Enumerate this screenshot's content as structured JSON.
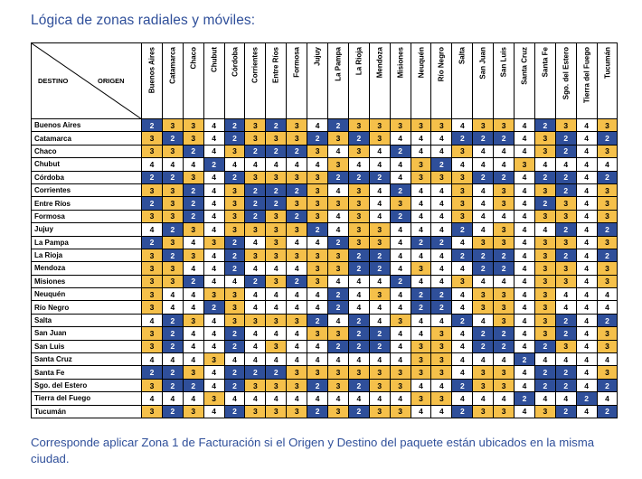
{
  "title": "Lógica de zonas  radiales y móviles:",
  "corner": {
    "destino_label": "DESTINO",
    "origen_label": "ORIGEN"
  },
  "zone_colors": {
    "2": "#2f4f9a",
    "3": "#f5c04a",
    "4": "#ffffff"
  },
  "columns": [
    "Buenos Aires",
    "Catamarca",
    "Chaco",
    "Chubut",
    "Córdoba",
    "Corrientes",
    "Entre Ríos",
    "Formosa",
    "Jujuy",
    "La Pampa",
    "La Rioja",
    "Mendoza",
    "Misiones",
    "Neuquén",
    "Río Negro",
    "Salta",
    "San Juan",
    "San Luis",
    "Santa Cruz",
    "Santa Fe",
    "Sgo. del Estero",
    "Tierra del Fuego",
    "Tucumán"
  ],
  "rows": [
    {
      "label": "Buenos Aires",
      "values": [
        2,
        3,
        3,
        4,
        2,
        3,
        2,
        3,
        4,
        2,
        3,
        3,
        3,
        3,
        3,
        4,
        3,
        3,
        4,
        2,
        3,
        4,
        3
      ]
    },
    {
      "label": "Catamarca",
      "values": [
        3,
        2,
        3,
        4,
        2,
        3,
        3,
        3,
        2,
        3,
        2,
        3,
        4,
        4,
        4,
        2,
        2,
        2,
        4,
        3,
        2,
        4,
        2
      ]
    },
    {
      "label": "Chaco",
      "values": [
        3,
        3,
        2,
        4,
        3,
        2,
        2,
        2,
        3,
        4,
        3,
        4,
        2,
        4,
        4,
        3,
        4,
        4,
        4,
        3,
        2,
        4,
        3
      ]
    },
    {
      "label": "Chubut",
      "values": [
        4,
        4,
        4,
        2,
        4,
        4,
        4,
        4,
        4,
        3,
        4,
        4,
        4,
        3,
        2,
        4,
        4,
        4,
        3,
        4,
        4,
        4,
        4
      ]
    },
    {
      "label": "Córdoba",
      "values": [
        2,
        2,
        3,
        4,
        2,
        3,
        3,
        3,
        3,
        2,
        2,
        2,
        4,
        3,
        3,
        3,
        2,
        2,
        4,
        2,
        2,
        4,
        2
      ]
    },
    {
      "label": "Corrientes",
      "values": [
        3,
        3,
        2,
        4,
        3,
        2,
        2,
        2,
        3,
        4,
        3,
        4,
        2,
        4,
        4,
        3,
        4,
        3,
        4,
        3,
        2,
        4,
        3
      ]
    },
    {
      "label": "Entre Ríos",
      "values": [
        2,
        3,
        2,
        4,
        3,
        2,
        2,
        3,
        3,
        3,
        3,
        4,
        3,
        4,
        4,
        3,
        4,
        3,
        4,
        2,
        3,
        4,
        3
      ]
    },
    {
      "label": "Formosa",
      "values": [
        3,
        3,
        2,
        4,
        3,
        2,
        3,
        2,
        3,
        4,
        3,
        4,
        2,
        4,
        4,
        3,
        4,
        4,
        4,
        3,
        3,
        4,
        3
      ]
    },
    {
      "label": "Jujuy",
      "values": [
        4,
        2,
        3,
        4,
        3,
        3,
        3,
        3,
        2,
        4,
        3,
        3,
        4,
        4,
        4,
        2,
        4,
        3,
        4,
        4,
        2,
        4,
        2
      ]
    },
    {
      "label": "La Pampa",
      "values": [
        2,
        3,
        4,
        3,
        2,
        4,
        3,
        4,
        4,
        2,
        3,
        3,
        4,
        2,
        2,
        4,
        3,
        3,
        4,
        3,
        3,
        4,
        3
      ]
    },
    {
      "label": "La Rioja",
      "values": [
        3,
        2,
        3,
        4,
        2,
        3,
        3,
        3,
        3,
        3,
        2,
        2,
        4,
        4,
        4,
        2,
        2,
        2,
        4,
        3,
        2,
        4,
        2
      ]
    },
    {
      "label": "Mendoza",
      "values": [
        3,
        3,
        4,
        4,
        2,
        4,
        4,
        4,
        3,
        3,
        2,
        2,
        4,
        3,
        4,
        4,
        2,
        2,
        4,
        3,
        3,
        4,
        3
      ]
    },
    {
      "label": "Misiones",
      "values": [
        3,
        3,
        2,
        4,
        4,
        2,
        3,
        2,
        3,
        4,
        4,
        4,
        2,
        4,
        4,
        3,
        4,
        4,
        4,
        3,
        3,
        4,
        3
      ]
    },
    {
      "label": "Neuquén",
      "values": [
        3,
        4,
        4,
        3,
        3,
        4,
        4,
        4,
        4,
        2,
        4,
        3,
        4,
        2,
        2,
        4,
        3,
        3,
        4,
        3,
        4,
        4,
        4
      ]
    },
    {
      "label": "Río Negro",
      "values": [
        3,
        4,
        4,
        2,
        3,
        4,
        4,
        4,
        4,
        2,
        4,
        4,
        4,
        2,
        2,
        4,
        3,
        3,
        4,
        3,
        4,
        4,
        4
      ]
    },
    {
      "label": "Salta",
      "values": [
        4,
        2,
        3,
        4,
        3,
        3,
        3,
        3,
        2,
        4,
        2,
        4,
        3,
        4,
        4,
        2,
        4,
        3,
        4,
        3,
        2,
        4,
        2
      ]
    },
    {
      "label": "San Juan",
      "values": [
        3,
        2,
        4,
        4,
        2,
        4,
        4,
        4,
        3,
        3,
        2,
        2,
        4,
        4,
        3,
        4,
        2,
        2,
        4,
        3,
        2,
        4,
        3
      ]
    },
    {
      "label": "San Luis",
      "values": [
        3,
        2,
        4,
        4,
        2,
        4,
        3,
        4,
        4,
        2,
        2,
        2,
        4,
        3,
        3,
        4,
        2,
        2,
        4,
        2,
        3,
        4,
        3
      ]
    },
    {
      "label": "Santa Cruz",
      "values": [
        4,
        4,
        4,
        3,
        4,
        4,
        4,
        4,
        4,
        4,
        4,
        4,
        4,
        3,
        3,
        4,
        4,
        4,
        2,
        4,
        4,
        4,
        4
      ]
    },
    {
      "label": "Santa Fe",
      "values": [
        2,
        2,
        3,
        4,
        2,
        2,
        2,
        3,
        3,
        3,
        3,
        3,
        3,
        3,
        3,
        4,
        3,
        3,
        4,
        2,
        2,
        4,
        3
      ]
    },
    {
      "label": "Sgo. del Estero",
      "values": [
        3,
        2,
        2,
        4,
        2,
        3,
        3,
        3,
        2,
        3,
        2,
        3,
        3,
        4,
        4,
        2,
        3,
        3,
        4,
        2,
        2,
        4,
        2
      ]
    },
    {
      "label": "Tierra del Fuego",
      "values": [
        4,
        4,
        4,
        3,
        4,
        4,
        4,
        4,
        4,
        4,
        4,
        4,
        4,
        3,
        3,
        4,
        4,
        4,
        2,
        4,
        4,
        2,
        4
      ]
    },
    {
      "label": "Tucumán",
      "values": [
        3,
        2,
        3,
        4,
        2,
        3,
        3,
        3,
        2,
        3,
        2,
        3,
        3,
        4,
        4,
        2,
        3,
        3,
        4,
        3,
        2,
        4,
        2
      ]
    }
  ],
  "note": "Corresponde aplicar Zona 1 de Facturación si el Origen y Destino del paquete están ubicados  en la misma ciudad."
}
